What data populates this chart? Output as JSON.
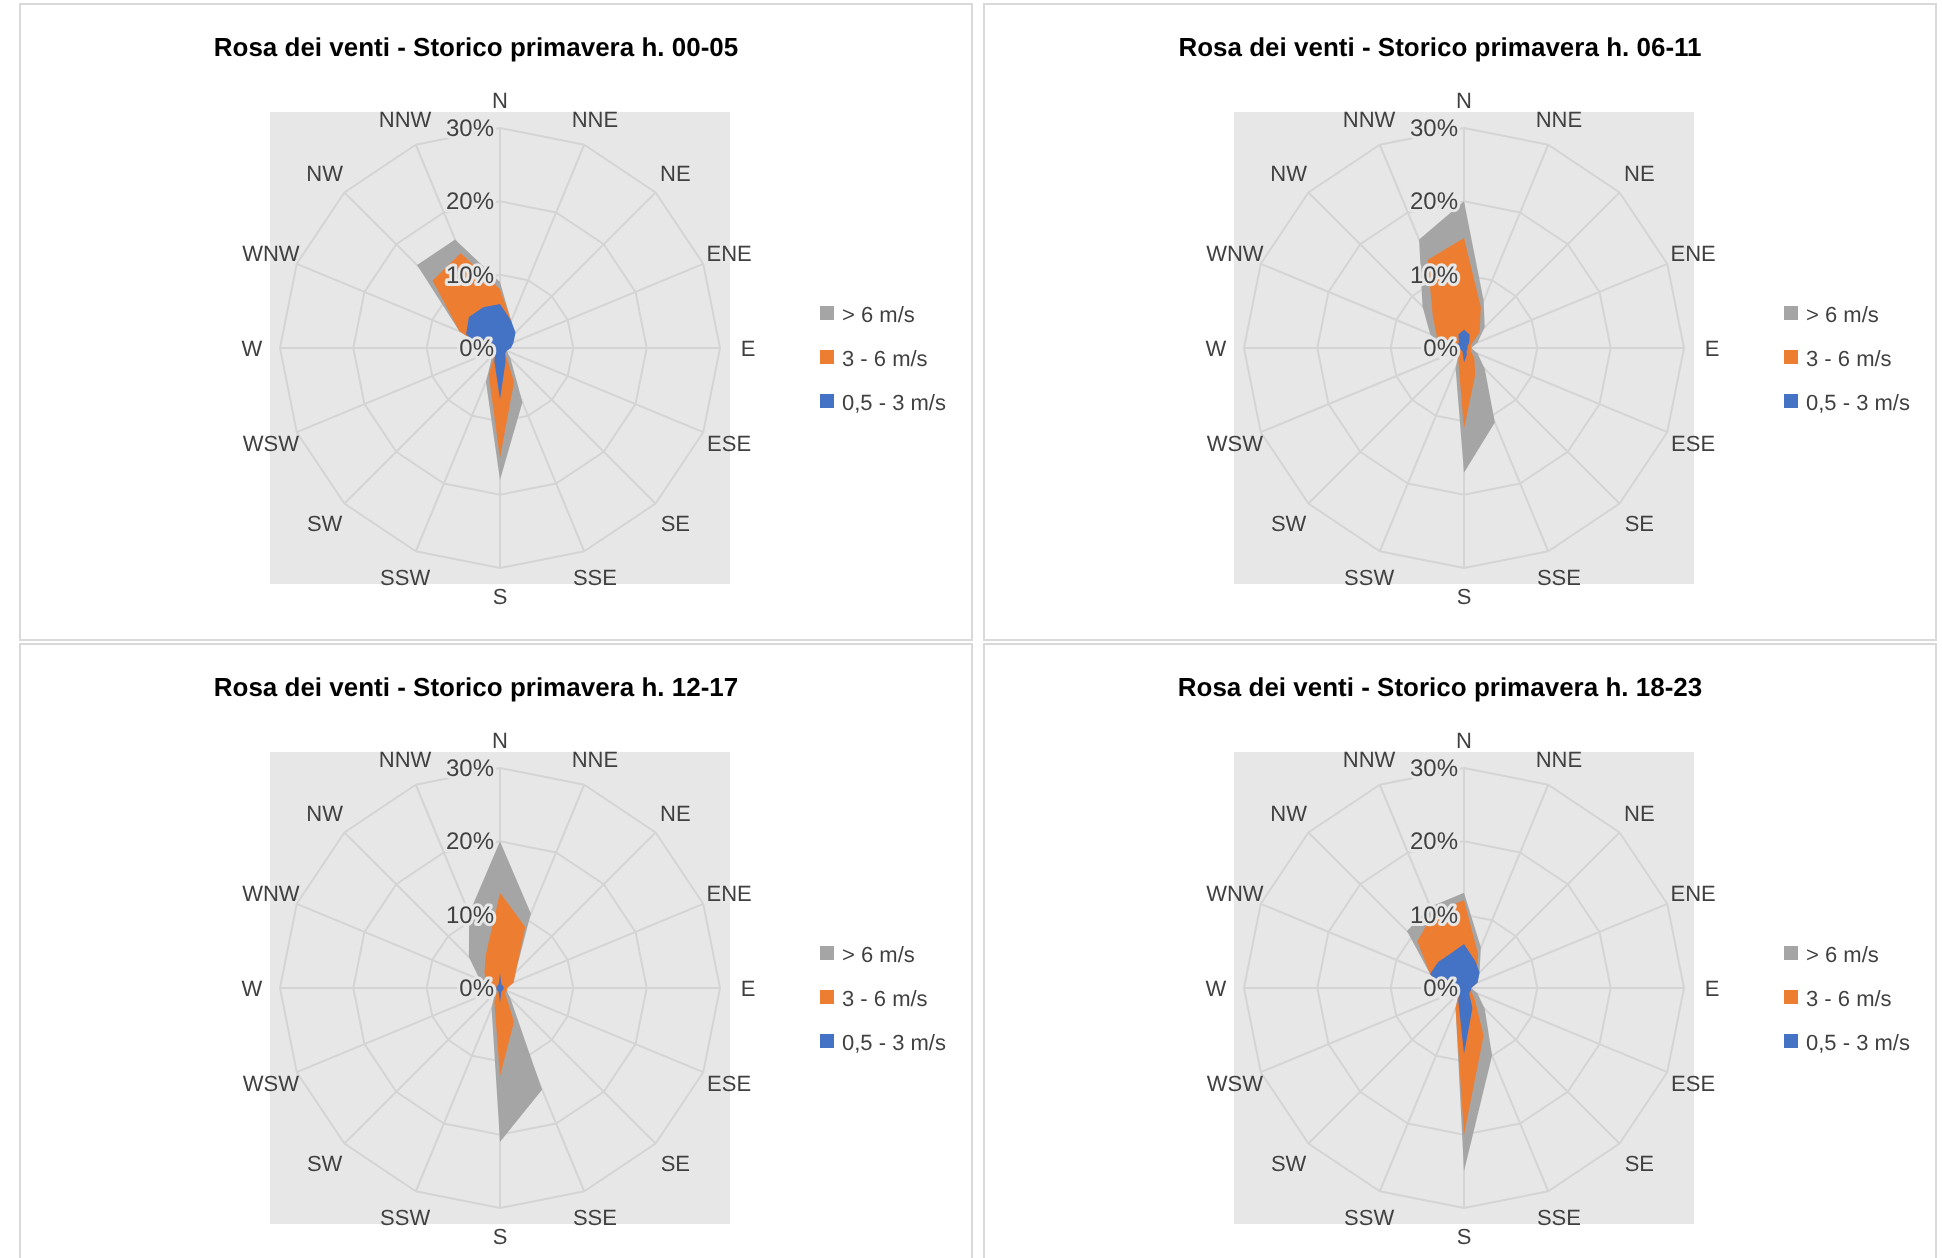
{
  "chart_data": [
    {
      "type": "radar",
      "title": "Rosa dei venti - Storico primavera h. 00-05",
      "categories": [
        "N",
        "NNE",
        "NE",
        "ENE",
        "E",
        "ESE",
        "SE",
        "SSE",
        "S",
        "SSW",
        "SW",
        "WSW",
        "W",
        "WNW",
        "NW",
        "NNW"
      ],
      "ylim": [
        0,
        30
      ],
      "yticks": [
        {
          "value": 0,
          "label": "0%"
        },
        {
          "value": 10,
          "label": "10%"
        },
        {
          "value": 20,
          "label": "20%"
        },
        {
          "value": 30,
          "label": "30%"
        }
      ],
      "grid": true,
      "legend": "right",
      "series": [
        {
          "name": "> 6 m/s",
          "color": "#a5a5a5",
          "values": [
            9,
            4,
            2,
            1.5,
            1,
            1,
            2,
            8,
            18,
            5,
            1.5,
            1,
            2,
            6,
            16,
            16
          ]
        },
        {
          "name": "3 - 6 m/s",
          "color": "#ed7d31",
          "values": [
            8,
            4,
            2,
            1.5,
            1,
            0.5,
            1,
            5,
            15,
            4,
            1,
            1,
            2,
            6,
            13,
            14
          ]
        },
        {
          "name": "0,5 - 3 m/s",
          "color": "#4472c4",
          "values": [
            6,
            4,
            3,
            2,
            1.5,
            1,
            1,
            2,
            7,
            2,
            1,
            1,
            3,
            5,
            6,
            6
          ]
        }
      ]
    },
    {
      "type": "radar",
      "title": "Rosa dei venti - Storico primavera h. 06-11",
      "categories": [
        "N",
        "NNE",
        "NE",
        "ENE",
        "E",
        "ESE",
        "SE",
        "SSE",
        "S",
        "SSW",
        "SW",
        "WSW",
        "W",
        "WNW",
        "NW",
        "NNW"
      ],
      "ylim": [
        0,
        30
      ],
      "yticks": [
        {
          "value": 0,
          "label": "0%"
        },
        {
          "value": 10,
          "label": "10%"
        },
        {
          "value": 20,
          "label": "20%"
        },
        {
          "value": 30,
          "label": "30%"
        }
      ],
      "grid": true,
      "legend": "right",
      "series": [
        {
          "name": "> 6 m/s",
          "color": "#a5a5a5",
          "values": [
            20,
            7,
            4,
            2,
            1,
            2,
            4,
            11,
            17,
            3,
            1,
            1,
            3,
            5,
            8,
            16
          ]
        },
        {
          "name": "3 - 6 m/s",
          "color": "#ed7d31",
          "values": [
            15,
            6,
            3,
            1,
            1,
            1,
            2,
            4,
            11,
            2,
            1,
            1,
            3,
            4,
            6,
            13
          ]
        },
        {
          "name": "0,5 - 3 m/s",
          "color": "#4472c4",
          "values": [
            2.5,
            2,
            1,
            0.5,
            0.5,
            0.5,
            0.5,
            1,
            2,
            0.5,
            0.5,
            0.5,
            1,
            1,
            1,
            2
          ]
        }
      ]
    },
    {
      "type": "radar",
      "title": "Rosa dei venti - Storico primavera h. 12-17",
      "categories": [
        "N",
        "NNE",
        "NE",
        "ENE",
        "E",
        "ESE",
        "SE",
        "SSE",
        "S",
        "SSW",
        "SW",
        "WSW",
        "W",
        "WNW",
        "NW",
        "NNW"
      ],
      "ylim": [
        0,
        30
      ],
      "yticks": [
        {
          "value": 0,
          "label": "0%"
        },
        {
          "value": 10,
          "label": "10%"
        },
        {
          "value": 20,
          "label": "20%"
        },
        {
          "value": 30,
          "label": "30%"
        }
      ],
      "grid": true,
      "legend": "right",
      "series": [
        {
          "name": "> 6 m/s",
          "color": "#a5a5a5",
          "values": [
            20,
            11,
            3,
            2,
            1,
            1,
            2,
            15,
            21,
            3,
            1,
            1,
            2.5,
            3,
            6,
            11
          ]
        },
        {
          "name": "3 - 6 m/s",
          "color": "#ed7d31",
          "values": [
            13,
            9,
            3,
            2,
            1,
            1,
            1,
            5,
            12,
            2,
            0.5,
            0.5,
            1,
            2,
            3,
            5
          ]
        },
        {
          "name": "0,5 - 3 m/s",
          "color": "#4472c4",
          "values": [
            2,
            0.5,
            0.5,
            0.5,
            0.5,
            0.5,
            0.5,
            0.5,
            2,
            0.5,
            0.5,
            0.5,
            0.5,
            0.5,
            0.5,
            0.5
          ]
        }
      ]
    },
    {
      "type": "radar",
      "title": "Rosa dei venti - Storico primavera h. 18-23",
      "categories": [
        "N",
        "NNE",
        "NE",
        "ENE",
        "E",
        "ESE",
        "SE",
        "SSE",
        "S",
        "SSW",
        "SW",
        "WSW",
        "W",
        "WNW",
        "NW",
        "NNW"
      ],
      "ylim": [
        0,
        30
      ],
      "yticks": [
        {
          "value": 0,
          "label": "0%"
        },
        {
          "value": 10,
          "label": "10%"
        },
        {
          "value": 20,
          "label": "20%"
        },
        {
          "value": 30,
          "label": "30%"
        }
      ],
      "grid": true,
      "legend": "right",
      "series": [
        {
          "name": "> 6 m/s",
          "color": "#a5a5a5",
          "values": [
            13,
            6,
            3,
            2,
            1,
            2,
            4,
            10,
            25,
            3,
            1,
            1,
            3,
            5,
            11,
            12
          ]
        },
        {
          "name": "3 - 6 m/s",
          "color": "#ed7d31",
          "values": [
            12,
            5,
            2.5,
            2,
            1,
            1,
            2,
            7,
            20,
            3,
            1,
            1,
            3,
            5,
            9,
            11
          ]
        },
        {
          "name": "0,5 - 3 m/s",
          "color": "#4472c4",
          "values": [
            6,
            4,
            3,
            2,
            1,
            1,
            1,
            3,
            9,
            2,
            1,
            1,
            3,
            5,
            5,
            5
          ]
        }
      ]
    }
  ]
}
